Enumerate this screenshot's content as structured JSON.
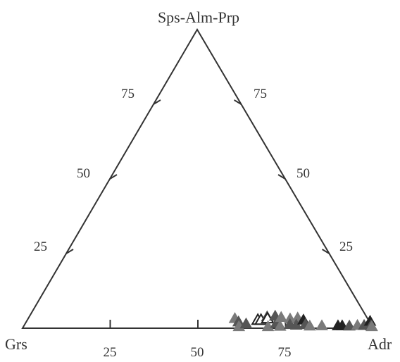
{
  "chart_data": {
    "type": "scatter",
    "plot_kind": "ternary",
    "title": "",
    "vertices": {
      "top": "Sps-Alm-Prp",
      "left": "Grs",
      "right": "Adr"
    },
    "ticks": {
      "left_edge": [
        "25",
        "50",
        "75"
      ],
      "right_edge": [
        "25",
        "50",
        "75"
      ],
      "bottom_edge": [
        "25",
        "50",
        "75"
      ]
    },
    "marker": "triangle",
    "colors": {
      "axis": "#333333",
      "marker_dark": "#222222",
      "marker_mid": "#555555",
      "marker_light": "#7a7a7a",
      "marker_open": "#222222"
    },
    "series": [
      {
        "composition": "Adr-Grs-(Sps-Alm-Prp), percent",
        "points": [
          {
            "adr": 58.8,
            "sps": 3.5,
            "shade": "light"
          },
          {
            "adr": 60.4,
            "sps": 2.4,
            "shade": "mid"
          },
          {
            "adr": 61.3,
            "sps": 0.8,
            "shade": "light"
          },
          {
            "adr": 62.9,
            "sps": 1.7,
            "shade": "mid"
          },
          {
            "adr": 65.6,
            "sps": 3.0,
            "shade": "open"
          },
          {
            "adr": 66.5,
            "sps": 3.0,
            "shade": "open"
          },
          {
            "adr": 67.7,
            "sps": 4.1,
            "shade": "mid"
          },
          {
            "adr": 68.1,
            "sps": 3.5,
            "shade": "open"
          },
          {
            "adr": 69.9,
            "sps": 4.3,
            "shade": "mid"
          },
          {
            "adr": 69.6,
            "sps": 0.8,
            "shade": "light"
          },
          {
            "adr": 71.4,
            "sps": 1.9,
            "shade": "mid"
          },
          {
            "adr": 71.8,
            "sps": 3.9,
            "shade": "light"
          },
          {
            "adr": 73.0,
            "sps": 0.9,
            "shade": "light"
          },
          {
            "adr": 74.6,
            "sps": 3.4,
            "shade": "light"
          },
          {
            "adr": 75.5,
            "sps": 1.5,
            "shade": "mid"
          },
          {
            "adr": 76.6,
            "sps": 3.7,
            "shade": "light"
          },
          {
            "adr": 77.4,
            "sps": 1.3,
            "shade": "mid"
          },
          {
            "adr": 78.6,
            "sps": 3.0,
            "shade": "dark"
          },
          {
            "adr": 79.9,
            "sps": 1.5,
            "shade": "mid"
          },
          {
            "adr": 81.4,
            "sps": 1.0,
            "shade": "light"
          },
          {
            "adr": 84.8,
            "sps": 1.1,
            "shade": "light"
          },
          {
            "adr": 89.4,
            "sps": 1.1,
            "shade": "dark"
          },
          {
            "adr": 90.6,
            "sps": 1.1,
            "shade": "dark"
          },
          {
            "adr": 92.7,
            "sps": 1.0,
            "shade": "mid"
          },
          {
            "adr": 94.9,
            "sps": 1.2,
            "shade": "light"
          },
          {
            "adr": 96.8,
            "sps": 1.2,
            "shade": "mid"
          },
          {
            "adr": 97.8,
            "sps": 2.6,
            "shade": "dark"
          },
          {
            "adr": 98.8,
            "sps": 1.1,
            "shade": "mid"
          },
          {
            "adr": 99.2,
            "sps": 0.8,
            "shade": "light"
          }
        ]
      }
    ]
  }
}
